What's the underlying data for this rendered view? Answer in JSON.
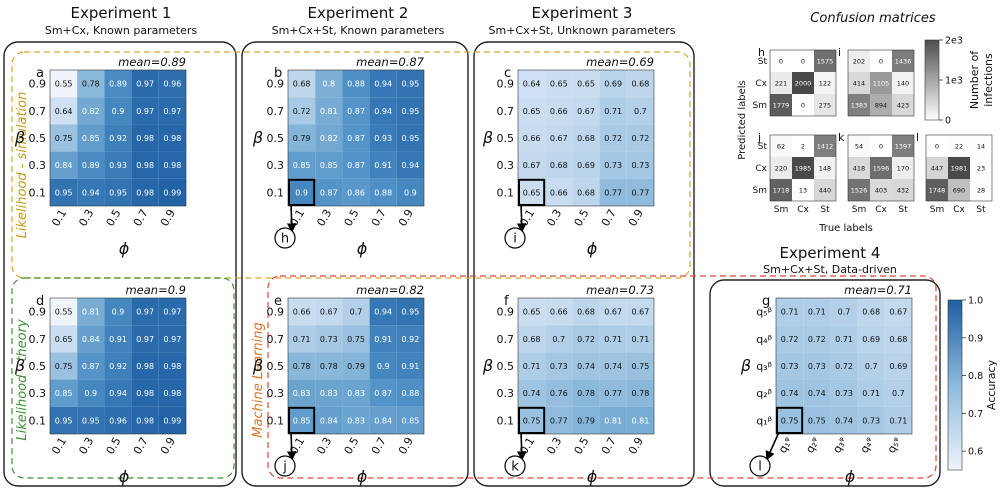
{
  "headers": [
    {
      "title": "Experiment 1",
      "subtitle": "Sm+Cx, Known parameters"
    },
    {
      "title": "Experiment 2",
      "subtitle": "Sm+Cx+St, Known parameters"
    },
    {
      "title": "Experiment 3",
      "subtitle": "Sm+Cx+St, Unknown parameters"
    },
    {
      "title": "Experiment 4",
      "subtitle": "Sm+Cx+St, Data-driven"
    }
  ],
  "confusion_title": "Confusion matrices",
  "row_labels": {
    "sim": "Likelihood - simulation",
    "theory": "Likelihood - theory",
    "ml": "Machine Learning"
  },
  "colorbar": {
    "label": "Accuracy",
    "ticks": [
      "1.0",
      "0.9",
      "0.8",
      "0.7",
      "0.6"
    ]
  },
  "cm_colorbar": {
    "label_1": "Number of",
    "label_2": "infections",
    "ticks": [
      "2e3",
      "1e3",
      "0"
    ]
  },
  "cm_axes": {
    "ylabel": "Predicted labels",
    "xlabel": "True labels",
    "classes": [
      "Sm",
      "Cx",
      "St"
    ]
  },
  "chart_data": [
    {
      "id": "a",
      "type": "heatmap",
      "title": "mean=0.89",
      "xlabel": "ϕ",
      "ylabel": "β",
      "x_ticks": [
        "0.1",
        "0.3",
        "0.5",
        "0.7",
        "0.9"
      ],
      "y_ticks": [
        "0.9",
        "0.7",
        "0.5",
        "0.3",
        "0.1"
      ],
      "values": [
        [
          0.55,
          0.78,
          0.89,
          0.97,
          0.96
        ],
        [
          0.64,
          0.82,
          0.9,
          0.97,
          0.97
        ],
        [
          0.75,
          0.85,
          0.92,
          0.98,
          0.98
        ],
        [
          0.84,
          0.89,
          0.93,
          0.98,
          0.98
        ],
        [
          0.95,
          0.94,
          0.95,
          0.98,
          0.99
        ]
      ],
      "labels": [
        [
          "0.55",
          "0.78",
          "0.89",
          "0.97",
          "0.96"
        ],
        [
          "0.64",
          "0.82",
          "0.9",
          "0.97",
          "0.97"
        ],
        [
          "0.75",
          "0.85",
          "0.92",
          "0.98",
          "0.98"
        ],
        [
          "0.84",
          "0.89",
          "0.93",
          "0.98",
          "0.98"
        ],
        [
          "0.95",
          "0.94",
          "0.95",
          "0.98",
          "0.99"
        ]
      ],
      "zlim": [
        0.55,
        1.0
      ]
    },
    {
      "id": "b",
      "type": "heatmap",
      "title": "mean=0.87",
      "xlabel": "ϕ",
      "ylabel": "β",
      "x_ticks": [
        "0.1",
        "0.3",
        "0.5",
        "0.7",
        "0.9"
      ],
      "y_ticks": [
        "0.9",
        "0.7",
        "0.5",
        "0.3",
        "0.1"
      ],
      "values": [
        [
          0.68,
          0.8,
          0.88,
          0.94,
          0.95
        ],
        [
          0.72,
          0.81,
          0.87,
          0.94,
          0.95
        ],
        [
          0.79,
          0.82,
          0.87,
          0.93,
          0.95
        ],
        [
          0.85,
          0.85,
          0.87,
          0.91,
          0.94
        ],
        [
          0.9,
          0.87,
          0.86,
          0.88,
          0.9
        ]
      ],
      "labels": [
        [
          "0.68",
          "0.8",
          "0.88",
          "0.94",
          "0.95"
        ],
        [
          "0.72",
          "0.81",
          "0.87",
          "0.94",
          "0.95"
        ],
        [
          "0.79",
          "0.82",
          "0.87",
          "0.93",
          "0.95"
        ],
        [
          "0.85",
          "0.85",
          "0.87",
          "0.91",
          "0.94"
        ],
        [
          "0.9",
          "0.87",
          "0.86",
          "0.88",
          "0.9"
        ]
      ],
      "highlight": [
        4,
        0
      ],
      "callout": "h",
      "zlim": [
        0.55,
        1.0
      ]
    },
    {
      "id": "c",
      "type": "heatmap",
      "title": "mean=0.69",
      "xlabel": "ϕ",
      "ylabel": "β",
      "x_ticks": [
        "0.1",
        "0.3",
        "0.5",
        "0.7",
        "0.9"
      ],
      "y_ticks": [
        "0.9",
        "0.7",
        "0.5",
        "0.3",
        "0.1"
      ],
      "values": [
        [
          0.64,
          0.65,
          0.65,
          0.69,
          0.68
        ],
        [
          0.65,
          0.66,
          0.67,
          0.71,
          0.7
        ],
        [
          0.66,
          0.67,
          0.68,
          0.72,
          0.72
        ],
        [
          0.67,
          0.68,
          0.69,
          0.73,
          0.73
        ],
        [
          0.65,
          0.66,
          0.68,
          0.77,
          0.77
        ]
      ],
      "labels": [
        [
          "0.64",
          "0.65",
          "0.65",
          "0.69",
          "0.68"
        ],
        [
          "0.65",
          "0.66",
          "0.67",
          "0.71",
          "0.7"
        ],
        [
          "0.66",
          "0.67",
          "0.68",
          "0.72",
          "0.72"
        ],
        [
          "0.67",
          "0.68",
          "0.69",
          "0.73",
          "0.73"
        ],
        [
          "0.65",
          "0.66",
          "0.68",
          "0.77",
          "0.77"
        ]
      ],
      "highlight": [
        4,
        0
      ],
      "callout": "i",
      "zlim": [
        0.55,
        1.0
      ]
    },
    {
      "id": "d",
      "type": "heatmap",
      "title": "mean=0.9",
      "xlabel": "ϕ",
      "ylabel": "β",
      "x_ticks": [
        "0.1",
        "0.3",
        "0.5",
        "0.7",
        "0.9"
      ],
      "y_ticks": [
        "0.9",
        "0.7",
        "0.5",
        "0.3",
        "0.1"
      ],
      "values": [
        [
          0.55,
          0.81,
          0.9,
          0.97,
          0.97
        ],
        [
          0.65,
          0.84,
          0.91,
          0.97,
          0.97
        ],
        [
          0.75,
          0.87,
          0.92,
          0.98,
          0.98
        ],
        [
          0.85,
          0.9,
          0.94,
          0.98,
          0.98
        ],
        [
          0.95,
          0.95,
          0.96,
          0.98,
          0.99
        ]
      ],
      "labels": [
        [
          "0.55",
          "0.81",
          "0.9",
          "0.97",
          "0.97"
        ],
        [
          "0.65",
          "0.84",
          "0.91",
          "0.97",
          "0.97"
        ],
        [
          "0.75",
          "0.87",
          "0.92",
          "0.98",
          "0.98"
        ],
        [
          "0.85",
          "0.9",
          "0.94",
          "0.98",
          "0.98"
        ],
        [
          "0.95",
          "0.95",
          "0.96",
          "0.98",
          "0.99"
        ]
      ],
      "zlim": [
        0.55,
        1.0
      ]
    },
    {
      "id": "e",
      "type": "heatmap",
      "title": "mean=0.82",
      "xlabel": "ϕ",
      "ylabel": "β",
      "x_ticks": [
        "0.1",
        "0.3",
        "0.5",
        "0.7",
        "0.9"
      ],
      "y_ticks": [
        "0.9",
        "0.7",
        "0.5",
        "0.3",
        "0.1"
      ],
      "values": [
        [
          0.66,
          0.67,
          0.7,
          0.94,
          0.95
        ],
        [
          0.71,
          0.73,
          0.75,
          0.91,
          0.92
        ],
        [
          0.78,
          0.78,
          0.79,
          0.9,
          0.91
        ],
        [
          0.83,
          0.83,
          0.83,
          0.87,
          0.88
        ],
        [
          0.85,
          0.84,
          0.83,
          0.84,
          0.85
        ]
      ],
      "labels": [
        [
          "0.66",
          "0.67",
          "0.7",
          "0.94",
          "0.95"
        ],
        [
          "0.71",
          "0.73",
          "0.75",
          "0.91",
          "0.92"
        ],
        [
          "0.78",
          "0.78",
          "0.79",
          "0.9",
          "0.91"
        ],
        [
          "0.83",
          "0.83",
          "0.83",
          "0.87",
          "0.88"
        ],
        [
          "0.85",
          "0.84",
          "0.83",
          "0.84",
          "0.85"
        ]
      ],
      "highlight": [
        4,
        0
      ],
      "callout": "j",
      "zlim": [
        0.55,
        1.0
      ]
    },
    {
      "id": "f",
      "type": "heatmap",
      "title": "mean=0.73",
      "xlabel": "ϕ",
      "ylabel": "β",
      "x_ticks": [
        "0.1",
        "0.3",
        "0.5",
        "0.7",
        "0.9"
      ],
      "y_ticks": [
        "0.9",
        "0.7",
        "0.5",
        "0.3",
        "0.1"
      ],
      "values": [
        [
          0.65,
          0.66,
          0.68,
          0.67,
          0.67
        ],
        [
          0.68,
          0.7,
          0.72,
          0.71,
          0.71
        ],
        [
          0.71,
          0.73,
          0.74,
          0.74,
          0.75
        ],
        [
          0.74,
          0.76,
          0.78,
          0.77,
          0.78
        ],
        [
          0.75,
          0.77,
          0.79,
          0.81,
          0.81
        ]
      ],
      "labels": [
        [
          "0.65",
          "0.66",
          "0.68",
          "0.67",
          "0.67"
        ],
        [
          "0.68",
          "0.7",
          "0.72",
          "0.71",
          "0.71"
        ],
        [
          "0.71",
          "0.73",
          "0.74",
          "0.74",
          "0.75"
        ],
        [
          "0.74",
          "0.76",
          "0.78",
          "0.77",
          "0.78"
        ],
        [
          "0.75",
          "0.77",
          "0.79",
          "0.81",
          "0.81"
        ]
      ],
      "highlight": [
        4,
        0
      ],
      "callout": "k",
      "zlim": [
        0.55,
        1.0
      ]
    },
    {
      "id": "g",
      "type": "heatmap",
      "title": "mean=0.71",
      "xlabel": "ϕ",
      "ylabel": "β",
      "x_ticks": [
        "q₁ᵠ",
        "q₂ᵠ",
        "q₃ᵠ",
        "q₄ᵠ",
        "q₅ᵠ"
      ],
      "y_ticks": [
        "q₅ᵝ",
        "q₄ᵝ",
        "q₃ᵝ",
        "q₂ᵝ",
        "q₁ᵝ"
      ],
      "values": [
        [
          0.71,
          0.71,
          0.7,
          0.68,
          0.67
        ],
        [
          0.72,
          0.72,
          0.71,
          0.69,
          0.68
        ],
        [
          0.73,
          0.73,
          0.72,
          0.7,
          0.69
        ],
        [
          0.74,
          0.74,
          0.73,
          0.71,
          0.7
        ],
        [
          0.75,
          0.75,
          0.74,
          0.73,
          0.71
        ]
      ],
      "labels": [
        [
          "0.71",
          "0.71",
          "0.7",
          "0.68",
          "0.67"
        ],
        [
          "0.72",
          "0.72",
          "0.71",
          "0.69",
          "0.68"
        ],
        [
          "0.73",
          "0.73",
          "0.72",
          "0.7",
          "0.69"
        ],
        [
          "0.74",
          "0.74",
          "0.73",
          "0.71",
          "0.7"
        ],
        [
          "0.75",
          "0.75",
          "0.74",
          "0.73",
          "0.71"
        ]
      ],
      "highlight": [
        4,
        0
      ],
      "callout": "l",
      "zlim": [
        0.55,
        1.0
      ]
    },
    {
      "id": "h",
      "type": "heatmap",
      "subtype": "confusion",
      "values": [
        [
          0,
          0,
          1575
        ],
        [
          221,
          2000,
          122
        ],
        [
          1779,
          0,
          275
        ]
      ],
      "labels": [
        [
          "0",
          "0",
          "1575"
        ],
        [
          "221",
          "2000",
          "122"
        ],
        [
          "1779",
          "0",
          "275"
        ]
      ],
      "row_ticks": [
        "St",
        "Cx",
        "Sm"
      ],
      "zlim": [
        0,
        2000
      ]
    },
    {
      "id": "i",
      "type": "heatmap",
      "subtype": "confusion",
      "values": [
        [
          202,
          0,
          1436
        ],
        [
          414,
          1105,
          140
        ],
        [
          1383,
          894,
          423
        ]
      ],
      "labels": [
        [
          "202",
          "0",
          "1436"
        ],
        [
          "414",
          "1105",
          "140"
        ],
        [
          "1383",
          "894",
          "423"
        ]
      ],
      "zlim": [
        0,
        2000
      ]
    },
    {
      "id": "j",
      "type": "heatmap",
      "subtype": "confusion",
      "values": [
        [
          62,
          2,
          1412
        ],
        [
          220,
          1985,
          148
        ],
        [
          1718,
          13,
          440
        ]
      ],
      "labels": [
        [
          "62",
          "2",
          "1412"
        ],
        [
          "220",
          "1985",
          "148"
        ],
        [
          "1718",
          "13",
          "440"
        ]
      ],
      "row_ticks": [
        "St",
        "Cx",
        "Sm"
      ],
      "col_ticks": [
        "Sm",
        "Cx",
        "St"
      ],
      "zlim": [
        0,
        2000
      ]
    },
    {
      "id": "k",
      "type": "heatmap",
      "subtype": "confusion",
      "values": [
        [
          54,
          0,
          1397
        ],
        [
          418,
          1596,
          170
        ],
        [
          1526,
          403,
          432
        ]
      ],
      "labels": [
        [
          "54",
          "0",
          "1397"
        ],
        [
          "418",
          "1596",
          "170"
        ],
        [
          "1526",
          "403",
          "432"
        ]
      ],
      "col_ticks": [
        "Sm",
        "Cx",
        "St"
      ],
      "zlim": [
        0,
        2000
      ]
    },
    {
      "id": "l",
      "type": "heatmap",
      "subtype": "confusion",
      "values": [
        [
          0,
          22,
          14
        ],
        [
          447,
          1981,
          23
        ],
        [
          1748,
          690,
          28
        ]
      ],
      "labels": [
        [
          "0",
          "22",
          "14"
        ],
        [
          "447",
          "1981",
          "23"
        ],
        [
          "1748",
          "690",
          "28"
        ]
      ],
      "col_ticks": [
        "Sm",
        "Cx",
        "St"
      ],
      "zlim": [
        0,
        2000
      ]
    }
  ]
}
